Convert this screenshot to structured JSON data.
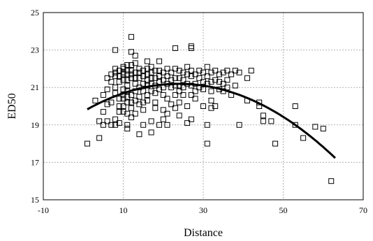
{
  "chart_data": {
    "type": "scatter",
    "title": "",
    "xlabel": "Distance",
    "ylabel": "ED50",
    "xlim": [
      -10,
      70
    ],
    "ylim": [
      15,
      25
    ],
    "xticks": [
      -10,
      10,
      30,
      50,
      70
    ],
    "yticks": [
      15,
      17,
      19,
      21,
      23,
      25
    ],
    "grid": true,
    "series": [
      {
        "marker": "square",
        "points": [
          [
            1,
            18.0
          ],
          [
            3,
            20.3
          ],
          [
            4,
            19.2
          ],
          [
            4,
            18.3
          ],
          [
            5,
            20.6
          ],
          [
            5,
            19.7
          ],
          [
            5,
            19.0
          ],
          [
            6,
            21.5
          ],
          [
            6,
            20.9
          ],
          [
            6,
            20.1
          ],
          [
            6,
            19.2
          ],
          [
            7,
            21.7
          ],
          [
            7,
            21.3
          ],
          [
            7,
            20.2
          ],
          [
            7,
            19.0
          ],
          [
            8,
            23.0
          ],
          [
            8,
            22.0
          ],
          [
            8,
            21.8
          ],
          [
            8,
            21.6
          ],
          [
            8,
            21.0
          ],
          [
            8,
            20.7
          ],
          [
            8,
            19.3
          ],
          [
            8,
            19.0
          ],
          [
            9,
            21.9
          ],
          [
            9,
            21.6
          ],
          [
            9,
            21.3
          ],
          [
            9,
            20.4
          ],
          [
            9,
            20.0
          ],
          [
            9,
            19.7
          ],
          [
            9,
            19.1
          ],
          [
            10,
            22.1
          ],
          [
            10,
            22.0
          ],
          [
            10,
            21.8
          ],
          [
            10,
            21.7
          ],
          [
            10,
            21.4
          ],
          [
            10,
            20.9
          ],
          [
            10,
            20.6
          ],
          [
            10,
            20.4
          ],
          [
            10,
            20.0
          ],
          [
            10,
            19.7
          ],
          [
            11,
            22.2
          ],
          [
            11,
            21.9
          ],
          [
            11,
            21.7
          ],
          [
            11,
            21.4
          ],
          [
            11,
            21.1
          ],
          [
            11,
            20.8
          ],
          [
            11,
            20.5
          ],
          [
            11,
            20.2
          ],
          [
            11,
            19.6
          ],
          [
            11,
            19.0
          ],
          [
            11,
            18.8
          ],
          [
            12,
            23.7
          ],
          [
            12,
            22.9
          ],
          [
            12,
            22.2
          ],
          [
            12,
            21.9
          ],
          [
            12,
            21.7
          ],
          [
            12,
            21.5
          ],
          [
            12,
            20.6
          ],
          [
            12,
            20.2
          ],
          [
            12,
            19.9
          ],
          [
            12,
            19.4
          ],
          [
            13,
            22.7
          ],
          [
            13,
            22.3
          ],
          [
            13,
            21.8
          ],
          [
            13,
            21.5
          ],
          [
            13,
            21.2
          ],
          [
            13,
            20.8
          ],
          [
            13,
            20.3
          ],
          [
            13,
            19.6
          ],
          [
            14,
            22.0
          ],
          [
            14,
            21.8
          ],
          [
            14,
            21.5
          ],
          [
            14,
            21.0
          ],
          [
            14,
            20.5
          ],
          [
            14,
            20.1
          ],
          [
            14,
            18.5
          ],
          [
            15,
            21.9
          ],
          [
            15,
            21.6
          ],
          [
            15,
            21.2
          ],
          [
            15,
            20.8
          ],
          [
            15,
            20.2
          ],
          [
            15,
            19.8
          ],
          [
            15,
            19.0
          ],
          [
            16,
            22.4
          ],
          [
            16,
            22.0
          ],
          [
            16,
            21.7
          ],
          [
            16,
            21.4
          ],
          [
            16,
            21.1
          ],
          [
            16,
            20.6
          ],
          [
            16,
            20.3
          ],
          [
            17,
            22.1
          ],
          [
            17,
            21.8
          ],
          [
            17,
            21.5
          ],
          [
            17,
            21.2
          ],
          [
            17,
            20.8
          ],
          [
            17,
            19.2
          ],
          [
            17,
            18.6
          ],
          [
            18,
            21.9
          ],
          [
            18,
            21.5
          ],
          [
            18,
            21.1
          ],
          [
            18,
            20.7
          ],
          [
            18,
            20.2
          ],
          [
            18,
            19.9
          ],
          [
            19,
            22.4
          ],
          [
            19,
            21.9
          ],
          [
            19,
            21.6
          ],
          [
            19,
            21.3
          ],
          [
            19,
            20.9
          ],
          [
            19,
            19.0
          ],
          [
            20,
            21.8
          ],
          [
            20,
            21.4
          ],
          [
            20,
            21.0
          ],
          [
            20,
            20.6
          ],
          [
            20,
            19.8
          ],
          [
            20,
            19.3
          ],
          [
            21,
            22.0
          ],
          [
            21,
            21.6
          ],
          [
            21,
            21.2
          ],
          [
            21,
            20.4
          ],
          [
            21,
            19.6
          ],
          [
            21,
            19.0
          ],
          [
            22,
            21.8
          ],
          [
            22,
            21.4
          ],
          [
            22,
            21.0
          ],
          [
            22,
            20.1
          ],
          [
            23,
            23.1
          ],
          [
            23,
            22.0
          ],
          [
            23,
            21.5
          ],
          [
            23,
            21.1
          ],
          [
            23,
            20.6
          ],
          [
            23,
            19.9
          ],
          [
            24,
            21.9
          ],
          [
            24,
            21.5
          ],
          [
            24,
            21.1
          ],
          [
            24,
            20.8
          ],
          [
            24,
            20.2
          ],
          [
            24,
            19.5
          ],
          [
            25,
            21.8
          ],
          [
            25,
            21.4
          ],
          [
            25,
            21.0
          ],
          [
            25,
            20.6
          ],
          [
            26,
            22.1
          ],
          [
            26,
            21.7
          ],
          [
            26,
            21.2
          ],
          [
            26,
            20.0
          ],
          [
            26,
            19.1
          ],
          [
            27,
            23.2
          ],
          [
            27,
            23.1
          ],
          [
            27,
            21.9
          ],
          [
            27,
            21.6
          ],
          [
            27,
            21.1
          ],
          [
            27,
            20.6
          ],
          [
            27,
            19.3
          ],
          [
            28,
            21.7
          ],
          [
            28,
            21.2
          ],
          [
            28,
            20.8
          ],
          [
            28,
            20.4
          ],
          [
            29,
            21.9
          ],
          [
            29,
            21.5
          ],
          [
            29,
            21.0
          ],
          [
            30,
            21.8
          ],
          [
            30,
            21.3
          ],
          [
            30,
            20.9
          ],
          [
            30,
            20.0
          ],
          [
            31,
            22.1
          ],
          [
            31,
            21.6
          ],
          [
            31,
            21.2
          ],
          [
            31,
            19.0
          ],
          [
            31,
            18.0
          ],
          [
            32,
            21.8
          ],
          [
            32,
            21.3
          ],
          [
            32,
            20.8
          ],
          [
            32,
            20.3
          ],
          [
            32,
            19.9
          ],
          [
            33,
            21.9
          ],
          [
            33,
            21.4
          ],
          [
            33,
            20.0
          ],
          [
            34,
            21.7
          ],
          [
            34,
            21.3
          ],
          [
            34,
            20.9
          ],
          [
            35,
            21.8
          ],
          [
            35,
            21.2
          ],
          [
            35,
            20.8
          ],
          [
            36,
            21.9
          ],
          [
            36,
            21.4
          ],
          [
            36,
            21.0
          ],
          [
            37,
            21.7
          ],
          [
            37,
            20.6
          ],
          [
            38,
            21.9
          ],
          [
            38,
            21.1
          ],
          [
            39,
            21.8
          ],
          [
            39,
            19.0
          ],
          [
            41,
            21.5
          ],
          [
            41,
            20.3
          ],
          [
            42,
            21.9
          ],
          [
            44,
            20.2
          ],
          [
            44,
            20.0
          ],
          [
            45,
            19.5
          ],
          [
            45,
            19.2
          ],
          [
            47,
            19.2
          ],
          [
            48,
            18.0
          ],
          [
            53,
            20.0
          ],
          [
            53,
            19.0
          ],
          [
            55,
            18.3
          ],
          [
            58,
            18.9
          ],
          [
            60,
            18.8
          ],
          [
            62,
            16.0
          ]
        ]
      }
    ],
    "fit": {
      "type": "quadratic",
      "x_range": [
        1,
        63
      ]
    }
  }
}
